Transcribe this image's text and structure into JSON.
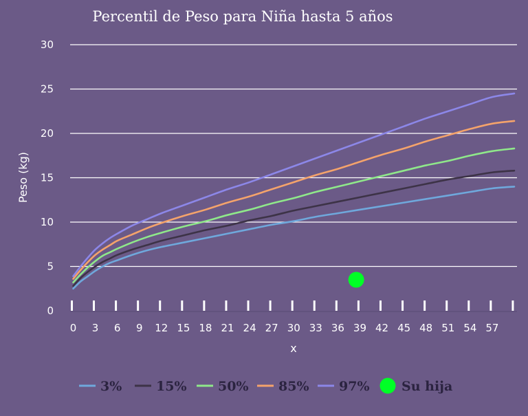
{
  "chart_data": {
    "type": "line",
    "title": "Percentil de Peso para Niña hasta 5 años",
    "xlabel": "x",
    "ylabel": "Peso (kg)",
    "xlim": [
      0,
      60
    ],
    "ylim": [
      0,
      30
    ],
    "x_ticks": [
      "0",
      "3",
      "6",
      "9",
      "12",
      "15",
      "18",
      "21",
      "24",
      "27",
      "30",
      "33",
      "36",
      "39",
      "42",
      "45",
      "48",
      "51",
      "54",
      "57"
    ],
    "y_ticks": [
      "0",
      "5",
      "10",
      "15",
      "20",
      "25",
      "30"
    ],
    "grid": true,
    "legend_position": "bottom",
    "x": [
      0,
      1,
      2,
      3,
      4,
      5,
      6,
      8,
      10,
      12,
      15,
      18,
      21,
      24,
      27,
      30,
      33,
      36,
      39,
      42,
      45,
      48,
      51,
      54,
      57,
      60
    ],
    "series": [
      {
        "name": "3%",
        "color": "#6fa8dc",
        "values": [
          2.5,
          3.3,
          3.9,
          4.5,
          5.0,
          5.4,
          5.7,
          6.3,
          6.8,
          7.2,
          7.7,
          8.2,
          8.7,
          9.2,
          9.7,
          10.1,
          10.6,
          11.0,
          11.4,
          11.8,
          12.2,
          12.6,
          13.0,
          13.4,
          13.8,
          14.0
        ]
      },
      {
        "name": "15%",
        "color": "#3d3347",
        "values": [
          2.8,
          3.7,
          4.4,
          5.0,
          5.5,
          5.9,
          6.3,
          6.9,
          7.4,
          7.9,
          8.5,
          9.1,
          9.6,
          10.2,
          10.7,
          11.3,
          11.8,
          12.3,
          12.8,
          13.3,
          13.8,
          14.3,
          14.8,
          15.2,
          15.6,
          15.8
        ]
      },
      {
        "name": "50%",
        "color": "#8fe88a",
        "values": [
          3.2,
          4.1,
          4.9,
          5.6,
          6.2,
          6.6,
          7.0,
          7.7,
          8.3,
          8.8,
          9.5,
          10.1,
          10.8,
          11.4,
          12.1,
          12.7,
          13.4,
          14.0,
          14.6,
          15.2,
          15.8,
          16.4,
          16.9,
          17.5,
          18.0,
          18.3
        ]
      },
      {
        "name": "85%",
        "color": "#f4a36b",
        "values": [
          3.6,
          4.6,
          5.5,
          6.3,
          6.9,
          7.4,
          7.9,
          8.6,
          9.3,
          9.9,
          10.7,
          11.4,
          12.2,
          12.9,
          13.7,
          14.5,
          15.3,
          16.0,
          16.8,
          17.6,
          18.3,
          19.1,
          19.8,
          20.5,
          21.1,
          21.4
        ]
      },
      {
        "name": "97%",
        "color": "#8c87e8",
        "values": [
          3.9,
          5.0,
          6.0,
          6.9,
          7.6,
          8.2,
          8.7,
          9.6,
          10.3,
          11.0,
          11.9,
          12.8,
          13.7,
          14.5,
          15.4,
          16.3,
          17.2,
          18.1,
          19.0,
          19.9,
          20.8,
          21.7,
          22.5,
          23.3,
          24.1,
          24.5
        ]
      }
    ],
    "point": {
      "name": "Su hija",
      "color": "#00ff26",
      "x": 38.5,
      "y": 3.5
    }
  }
}
